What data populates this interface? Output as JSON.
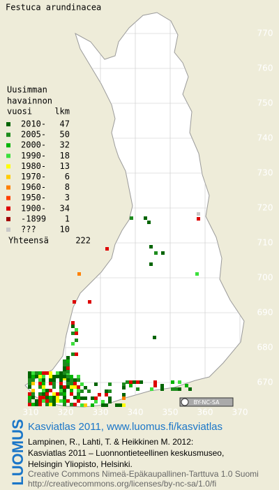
{
  "title": "Festuca arundinacea",
  "legend": {
    "header": [
      "Uusimman",
      "havainnon",
      "vuosi"
    ],
    "count_header": "lkm",
    "rows": [
      {
        "label": "2010-",
        "count": 47,
        "color": "#006400"
      },
      {
        "label": "2005-",
        "count": 50,
        "color": "#1e8c1e"
      },
      {
        "label": "2000-",
        "count": 32,
        "color": "#00b400"
      },
      {
        "label": "1990-",
        "count": 18,
        "color": "#3ce03c"
      },
      {
        "label": "1980-",
        "count": 13,
        "color": "#ffff00"
      },
      {
        "label": "1970-",
        "count": 6,
        "color": "#ffcc00"
      },
      {
        "label": "1960-",
        "count": 8,
        "color": "#ff8000"
      },
      {
        "label": "1950-",
        "count": 3,
        "color": "#ff4000"
      },
      {
        "label": "1900-",
        "count": 34,
        "color": "#dd0000"
      },
      {
        "label": "-1899",
        "count": 1,
        "color": "#a00000"
      },
      {
        "label": "???",
        "count": 10,
        "color": "#c8c8c8"
      }
    ],
    "total_label": "Yhteensä",
    "total": 222
  },
  "grid": {
    "y_labels": [
      770,
      760,
      750,
      740,
      730,
      720,
      710,
      700,
      690,
      680,
      670
    ],
    "x_labels": [
      310,
      320,
      330,
      340,
      350,
      360,
      370
    ]
  },
  "cc_badge": "BY-NC-SA",
  "credits": {
    "logo": "LUOMUS",
    "headline": "Kasviatlas 2011, www.luomus.fi/kasviatlas",
    "citation": [
      "Lampinen, R., Lahti, T. & Heikkinen M. 2012:",
      "Kasviatlas 2011 – Luonnontieteellinen keskusmuseo,",
      "Helsingin Yliopisto, Helsinki."
    ],
    "license": [
      "Creative Commons Nimeä-Epäkaupallinen-Tarttuva 1.0 Suomi",
      "http://creativecommons.org/licenses/by-nc-sa/1.0/fi"
    ]
  }
}
